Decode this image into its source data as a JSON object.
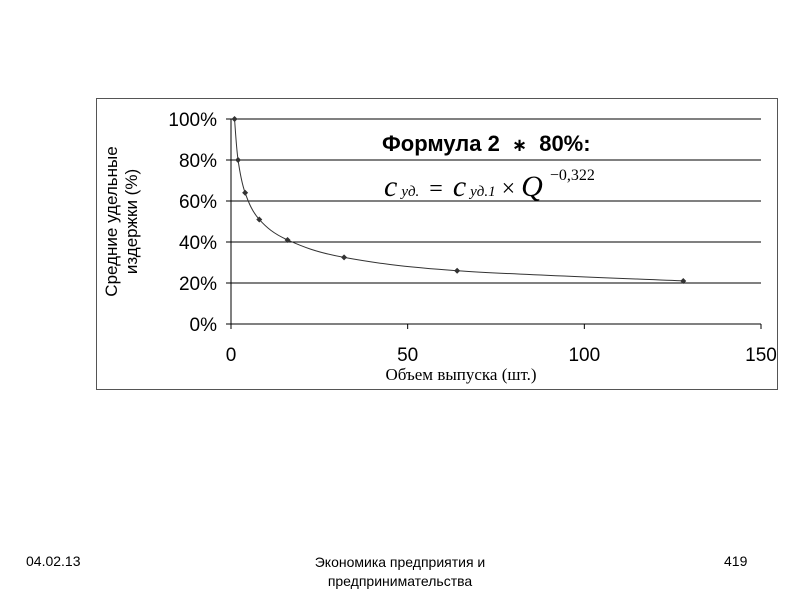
{
  "chart_data": {
    "type": "scatter",
    "title": "",
    "xlabel": "Объем выпуска (шт.)",
    "ylabel_lines": [
      "Средние удельные",
      "издержки (%)"
    ],
    "xlim": [
      0,
      150
    ],
    "ylim": [
      0,
      100
    ],
    "x_ticks": [
      0,
      50,
      100,
      150
    ],
    "y_ticks": [
      0,
      20,
      40,
      60,
      80,
      100
    ],
    "y_tick_format": "percent",
    "grid": "horizontal",
    "trendline": true,
    "series": [
      {
        "x": [
          1,
          2,
          4,
          8,
          16,
          32,
          64,
          128
        ],
        "y": [
          100,
          80,
          64,
          51,
          41,
          32.5,
          26,
          21
        ]
      }
    ]
  },
  "annotation": {
    "title_part1": "Формула 2",
    "title_symbol": "∗",
    "title_part2": "80%:",
    "formula": {
      "lhs_var": "c",
      "lhs_sub": "уд.",
      "equals": "=",
      "rhs_var": "c",
      "rhs_sub": "уд.1",
      "times": "×",
      "q": "Q",
      "exponent": "−0,322"
    }
  },
  "footer": {
    "date": "04.02.13",
    "title": "Экономика предприятия и предпринимательства",
    "page": "419"
  },
  "colors": {
    "series": "#333333",
    "grid": "#000000",
    "frame": "#555555"
  }
}
